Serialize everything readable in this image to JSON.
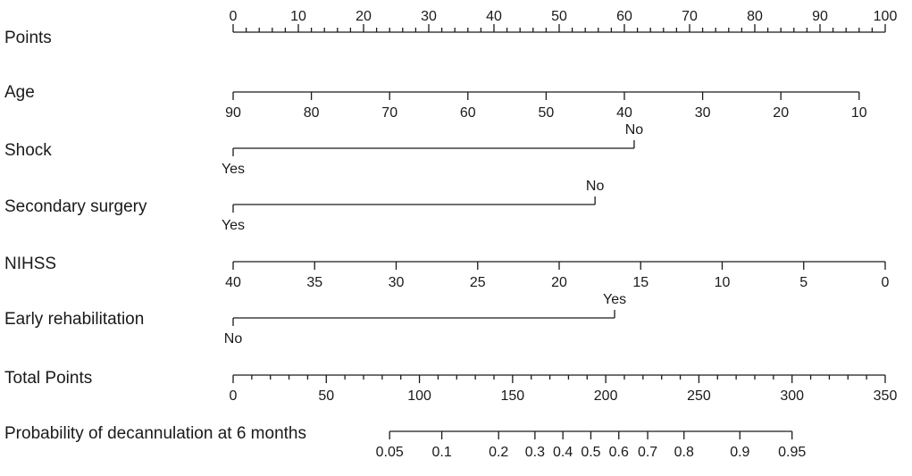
{
  "chart_data": {
    "type": "nomogram",
    "rows": [
      {
        "id": "points",
        "label": "Points",
        "kind": "points-scale",
        "points_range": [
          0,
          100
        ],
        "major_ticks": [
          0,
          10,
          20,
          30,
          40,
          50,
          60,
          70,
          80,
          90,
          100
        ],
        "minor_step": 2
      },
      {
        "id": "age",
        "label": "Age",
        "kind": "continuous",
        "variable_range": [
          90,
          10
        ],
        "points_at": [
          0,
          96
        ],
        "ticks": [
          90,
          80,
          70,
          60,
          50,
          40,
          30,
          20,
          10
        ]
      },
      {
        "id": "shock",
        "label": "Shock",
        "kind": "binary",
        "levels": [
          {
            "label": "Yes",
            "points": 0,
            "position": "below"
          },
          {
            "label": "No",
            "points": 61.5,
            "position": "above"
          }
        ]
      },
      {
        "id": "secondary_surgery",
        "label": "Secondary  surgery",
        "kind": "binary",
        "levels": [
          {
            "label": "Yes",
            "points": 0,
            "position": "below"
          },
          {
            "label": "No",
            "points": 55.5,
            "position": "above"
          }
        ]
      },
      {
        "id": "nihss",
        "label": "NIHSS",
        "kind": "continuous",
        "variable_range": [
          40,
          0
        ],
        "points_at": [
          0,
          100
        ],
        "ticks": [
          40,
          35,
          30,
          25,
          20,
          15,
          10,
          5,
          0
        ]
      },
      {
        "id": "early_rehabilitation",
        "label": "Early  rehabilitation",
        "kind": "binary",
        "levels": [
          {
            "label": "No",
            "points": 0,
            "position": "below"
          },
          {
            "label": "Yes",
            "points": 58.5,
            "position": "above"
          }
        ]
      },
      {
        "id": "total_points",
        "label": "Total Points",
        "kind": "total-scale",
        "total_range": [
          0,
          350
        ],
        "major_ticks": [
          0,
          50,
          100,
          150,
          200,
          250,
          300,
          350
        ],
        "minor_step": 10
      },
      {
        "id": "probability",
        "label": "Probability of decannulation at 6 months",
        "kind": "probability-scale",
        "ticks": [
          {
            "label": "0.05",
            "total_points": 84
          },
          {
            "label": "0.1",
            "total_points": 112
          },
          {
            "label": "0.2",
            "total_points": 142.5
          },
          {
            "label": "0.3",
            "total_points": 162
          },
          {
            "label": "0.4",
            "total_points": 177
          },
          {
            "label": "0.5",
            "total_points": 192
          },
          {
            "label": "0.6",
            "total_points": 207
          },
          {
            "label": "0.7",
            "total_points": 222.5
          },
          {
            "label": "0.8",
            "total_points": 242
          },
          {
            "label": "0.9",
            "total_points": 272
          },
          {
            "label": "0.95",
            "total_points": 300
          }
        ]
      }
    ]
  }
}
